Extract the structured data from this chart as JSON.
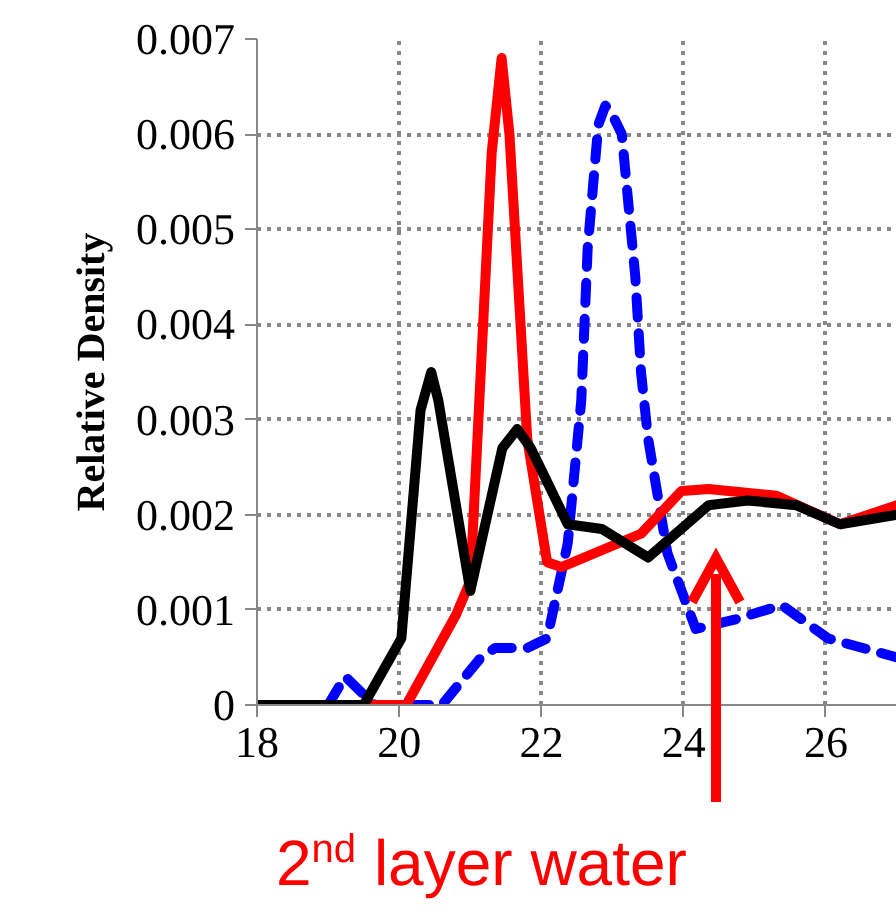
{
  "chart_data": {
    "type": "line",
    "ylabel": "Relative Density",
    "xlim": [
      18,
      27
    ],
    "ylim": [
      0,
      0.007
    ],
    "xticks": [
      18,
      20,
      22,
      24,
      26
    ],
    "yticks": [
      0,
      0.001,
      0.002,
      0.003,
      0.004,
      0.005,
      0.006,
      0.007
    ],
    "grid": true,
    "marker": "none",
    "series": [
      {
        "color": "#0000ff",
        "line_style": "dashed",
        "x": [
          18,
          19.0,
          19.24,
          19.65,
          20.6,
          21.15,
          21.35,
          21.8,
          22.08,
          22.37,
          22.56,
          22.65,
          22.8,
          22.9,
          23.0,
          23.13,
          23.32,
          23.4,
          23.5,
          23.77,
          24.17,
          24.73,
          25.38,
          26.03,
          27
        ],
        "values": [
          0,
          0,
          0.0003,
          0,
          0,
          0.0005,
          0.0006,
          0.0006,
          0.0007,
          0.0017,
          0.0032,
          0.0048,
          0.0061,
          0.0063,
          0.0062,
          0.006,
          0.0045,
          0.0035,
          0.0028,
          0.0016,
          0.0008,
          0.0009,
          0.00105,
          0.0007,
          0.0005
        ]
      },
      {
        "color": "#ff0000",
        "line_style": "solid",
        "x": [
          18,
          20.1,
          20.8,
          21.0,
          21.3,
          21.44,
          21.55,
          21.8,
          22.08,
          22.28,
          23.4,
          23.97,
          24.35,
          25.3,
          26.2,
          27
        ],
        "values": [
          0,
          0,
          0.00095,
          0.0013,
          0.0058,
          0.0068,
          0.006,
          0.0028,
          0.0015,
          0.00145,
          0.0018,
          0.00225,
          0.00227,
          0.0022,
          0.0019,
          0.0021
        ]
      },
      {
        "color": "#000000",
        "line_style": "solid",
        "x": [
          18,
          19.5,
          20.03,
          20.3,
          20.45,
          20.55,
          21.0,
          21.45,
          21.66,
          21.85,
          22.37,
          22.85,
          23.5,
          24.35,
          24.9,
          25.58,
          26.2,
          27
        ],
        "values": [
          0,
          0,
          0.0007,
          0.0031,
          0.0035,
          0.0032,
          0.0012,
          0.0027,
          0.0029,
          0.0027,
          0.0019,
          0.00185,
          0.00155,
          0.0021,
          0.00215,
          0.0021,
          0.0019,
          0.002
        ]
      }
    ],
    "annotations": [
      "2$^{nd}$ layer water"
    ]
  }
}
